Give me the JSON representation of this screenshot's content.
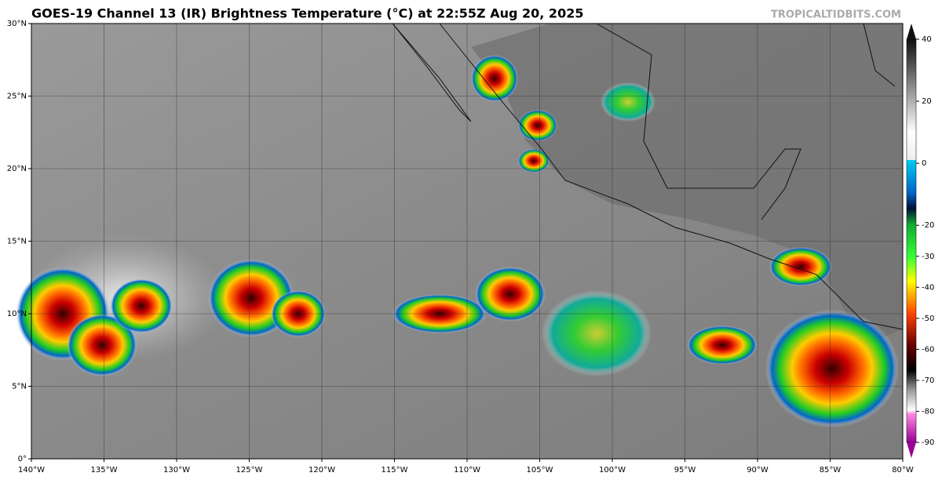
{
  "title": "GOES-19 Channel 13 (IR) Brightness Temperature (°C) at 22:55Z Aug 20, 2025",
  "watermark": "TROPICALTIDBITS.COM",
  "lat_labels": [
    "30°N",
    "25°N",
    "20°N",
    "15°N",
    "10°N",
    "5°N",
    "0°"
  ],
  "lon_labels": [
    "140°W",
    "135°W",
    "130°W",
    "125°W",
    "120°W",
    "115°W",
    "110°W",
    "105°W",
    "100°W",
    "95°W",
    "90°W",
    "85°W",
    "80°W"
  ],
  "colorbar": {
    "lim": [
      -90,
      40
    ],
    "ticks": [
      40,
      20,
      0,
      -20,
      -30,
      -40,
      -50,
      -60,
      -70,
      -80,
      -90
    ]
  }
}
